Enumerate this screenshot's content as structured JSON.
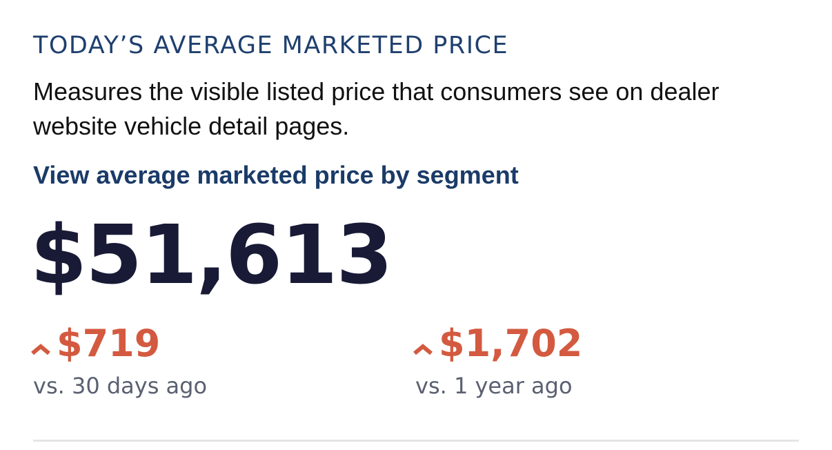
{
  "header": {
    "title": "TODAY’S AVERAGE MARKETED PRICE",
    "description": "Measures the visible listed price that consumers see on dealer website vehicle detail pages.",
    "link": "View average marketed price by segment"
  },
  "price": "$51,613",
  "changes": [
    {
      "value": "$719",
      "label": "vs. 30 days ago"
    },
    {
      "value": "$1,702",
      "label": "vs. 1 year ago"
    }
  ]
}
